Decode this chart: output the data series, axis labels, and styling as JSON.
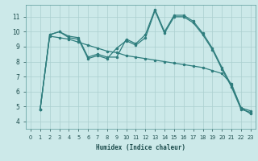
{
  "xlabel": "Humidex (Indice chaleur)",
  "xlim": [
    -0.5,
    23.5
  ],
  "ylim": [
    3.5,
    11.8
  ],
  "xticks": [
    0,
    1,
    2,
    3,
    4,
    5,
    6,
    7,
    8,
    9,
    10,
    11,
    12,
    13,
    14,
    15,
    16,
    17,
    18,
    19,
    20,
    21,
    22,
    23
  ],
  "yticks": [
    4,
    5,
    6,
    7,
    8,
    9,
    10,
    11
  ],
  "background_color": "#cce9e9",
  "grid_color": "#aacfcf",
  "line_color": "#2e7d7d",
  "line1_x": [
    1,
    2,
    3,
    4,
    5,
    6,
    7,
    8,
    9,
    10,
    11,
    12,
    13,
    14,
    15,
    16,
    17,
    18,
    19,
    20,
    21,
    22,
    23
  ],
  "line1_y": [
    4.8,
    9.8,
    10.0,
    9.7,
    9.6,
    8.3,
    8.5,
    8.3,
    8.3,
    9.5,
    9.2,
    9.8,
    11.5,
    10.0,
    11.1,
    11.1,
    10.7,
    9.9,
    8.9,
    7.6,
    6.4,
    4.9,
    4.7
  ],
  "line2_x": [
    1,
    2,
    3,
    4,
    5,
    6,
    7,
    8,
    9,
    10,
    11,
    12,
    13,
    14,
    15,
    16,
    17,
    18,
    19,
    20,
    21,
    22,
    23
  ],
  "line2_y": [
    4.8,
    9.8,
    10.0,
    9.6,
    9.5,
    8.2,
    8.4,
    8.2,
    8.9,
    9.4,
    9.1,
    9.6,
    11.4,
    9.9,
    11.0,
    11.0,
    10.6,
    9.8,
    8.8,
    7.5,
    6.3,
    4.8,
    4.6
  ],
  "line3_x": [
    1,
    2,
    3,
    4,
    5,
    6,
    7,
    8,
    9,
    10,
    11,
    12,
    13,
    14,
    15,
    16,
    17,
    18,
    19,
    20,
    21,
    22,
    23
  ],
  "line3_y": [
    4.8,
    9.7,
    9.6,
    9.5,
    9.3,
    9.1,
    8.9,
    8.7,
    8.6,
    8.4,
    8.3,
    8.2,
    8.1,
    8.0,
    7.9,
    7.8,
    7.7,
    7.6,
    7.4,
    7.2,
    6.5,
    4.9,
    4.5
  ]
}
